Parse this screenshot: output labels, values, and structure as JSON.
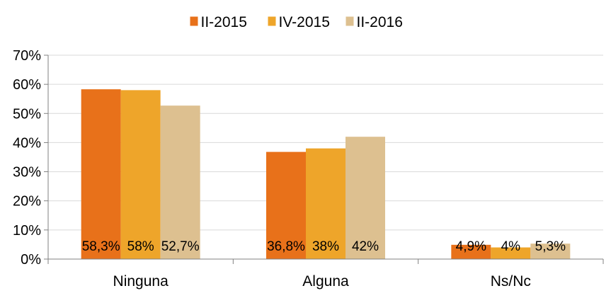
{
  "chart_data": {
    "type": "bar",
    "categories": [
      "Ninguna",
      "Alguna",
      "Ns/Nc"
    ],
    "series": [
      {
        "name": "II-2015",
        "values": [
          58.3,
          36.8,
          4.9
        ],
        "labels": [
          "58,3%",
          "36,8%",
          "4,9%"
        ],
        "color": "#E8711A"
      },
      {
        "name": "IV-2015",
        "values": [
          58,
          38,
          4
        ],
        "labels": [
          "58%",
          "38%",
          "4%"
        ],
        "color": "#EEA52A"
      },
      {
        "name": "II-2016",
        "values": [
          52.7,
          42,
          5.3
        ],
        "labels": [
          "52,7%",
          "42%",
          "5,3%"
        ],
        "color": "#DDC090"
      }
    ],
    "yticks": [
      "0%",
      "10%",
      "20%",
      "30%",
      "40%",
      "50%",
      "60%",
      "70%"
    ],
    "ylim": [
      0,
      70
    ],
    "grid": true,
    "legend": "top-center",
    "axis_color": "#808080",
    "grid_color": "#D9D9D9"
  }
}
